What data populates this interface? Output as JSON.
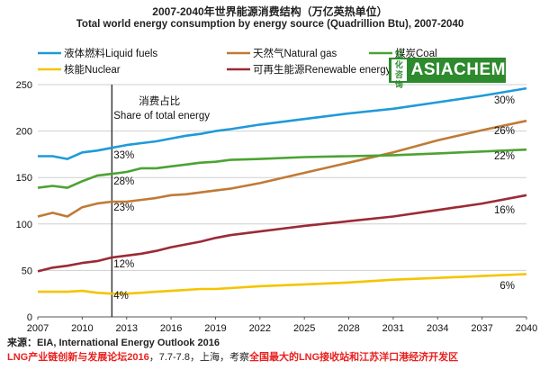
{
  "title_cn": "2007-2040年世界能源消费结构（万亿英热单位）",
  "title_en": "Total world energy consumption by energy source (Quadrillion Btu), 2007-2040",
  "logo": {
    "cn": "亚化咨询",
    "text": "ASIACHEM"
  },
  "annotation": {
    "cn": "消费占比",
    "en": "Share of total energy"
  },
  "footer": {
    "source": "来源：EIA, International Energy Outlook 2016",
    "event_red": "LNG产业链创新与发展论坛2016",
    "event_mid": "，7.7-7.8，上海，考察",
    "event_red2": "全国最大的LNG接收站和江苏洋口港经济开发区"
  },
  "chart_data": {
    "type": "line",
    "title": "Total world energy consumption by energy source (Quadrillion Btu), 2007-2040",
    "xlim": [
      2007,
      2040
    ],
    "ylim": [
      0,
      250
    ],
    "x_ticks": [
      "2007",
      "2010",
      "2013",
      "2016",
      "2019",
      "2022",
      "2025",
      "2028",
      "2031",
      "2034",
      "2037",
      "2040"
    ],
    "y_ticks": [
      "0",
      "50",
      "100",
      "150",
      "200",
      "250"
    ],
    "grid": true,
    "legend_position": "top",
    "vertical_marker_x": 2012,
    "series": [
      {
        "name": "液体燃料Liquid fuels",
        "color": "#1f9ad8",
        "x": [
          2007,
          2008,
          2009,
          2010,
          2011,
          2012,
          2013,
          2014,
          2015,
          2016,
          2017,
          2018,
          2019,
          2020,
          2022,
          2025,
          2028,
          2031,
          2034,
          2037,
          2040
        ],
        "y": [
          173,
          173,
          170,
          177,
          179,
          182,
          185,
          187,
          189,
          192,
          195,
          197,
          200,
          202,
          207,
          213,
          219,
          224,
          231,
          238,
          246
        ],
        "share_2012": "33%",
        "share_2040": "30%"
      },
      {
        "name": "天然气Natural gas",
        "color": "#c07a35",
        "x": [
          2007,
          2008,
          2009,
          2010,
          2011,
          2012,
          2013,
          2014,
          2015,
          2016,
          2017,
          2018,
          2019,
          2020,
          2022,
          2025,
          2028,
          2031,
          2034,
          2037,
          2040
        ],
        "y": [
          108,
          112,
          108,
          118,
          122,
          124,
          124,
          126,
          128,
          131,
          132,
          134,
          136,
          138,
          144,
          155,
          166,
          177,
          190,
          201,
          211
        ],
        "share_2012": "23%",
        "share_2040": "26%"
      },
      {
        "name": "煤炭Coal",
        "color": "#4ba332",
        "x": [
          2007,
          2008,
          2009,
          2010,
          2011,
          2012,
          2013,
          2014,
          2015,
          2016,
          2017,
          2018,
          2019,
          2020,
          2022,
          2025,
          2028,
          2031,
          2034,
          2037,
          2040
        ],
        "y": [
          139,
          141,
          139,
          146,
          152,
          154,
          156,
          160,
          160,
          162,
          164,
          166,
          167,
          169,
          170,
          172,
          173,
          174,
          176,
          178,
          180
        ],
        "share_2012": "28%",
        "share_2040": "22%"
      },
      {
        "name": "核能Nuclear",
        "color": "#f5c400",
        "x": [
          2007,
          2008,
          2009,
          2010,
          2011,
          2012,
          2013,
          2014,
          2015,
          2016,
          2017,
          2018,
          2019,
          2020,
          2022,
          2025,
          2028,
          2031,
          2034,
          2037,
          2040
        ],
        "y": [
          27,
          27,
          27,
          28,
          26,
          25,
          25,
          26,
          27,
          28,
          29,
          30,
          30,
          31,
          33,
          35,
          37,
          40,
          42,
          44,
          46
        ],
        "share_2012": "4%",
        "share_2040": "6%"
      },
      {
        "name": "可再生能源Renewable energy",
        "color": "#9b2a36",
        "x": [
          2007,
          2008,
          2009,
          2010,
          2011,
          2012,
          2013,
          2014,
          2015,
          2016,
          2017,
          2018,
          2019,
          2020,
          2022,
          2025,
          2028,
          2031,
          2034,
          2037,
          2040
        ],
        "y": [
          49,
          53,
          55,
          58,
          60,
          64,
          66,
          68,
          71,
          75,
          78,
          81,
          85,
          88,
          92,
          98,
          103,
          108,
          115,
          122,
          131
        ],
        "share_2012": "12%",
        "share_2040": "16%"
      }
    ]
  }
}
